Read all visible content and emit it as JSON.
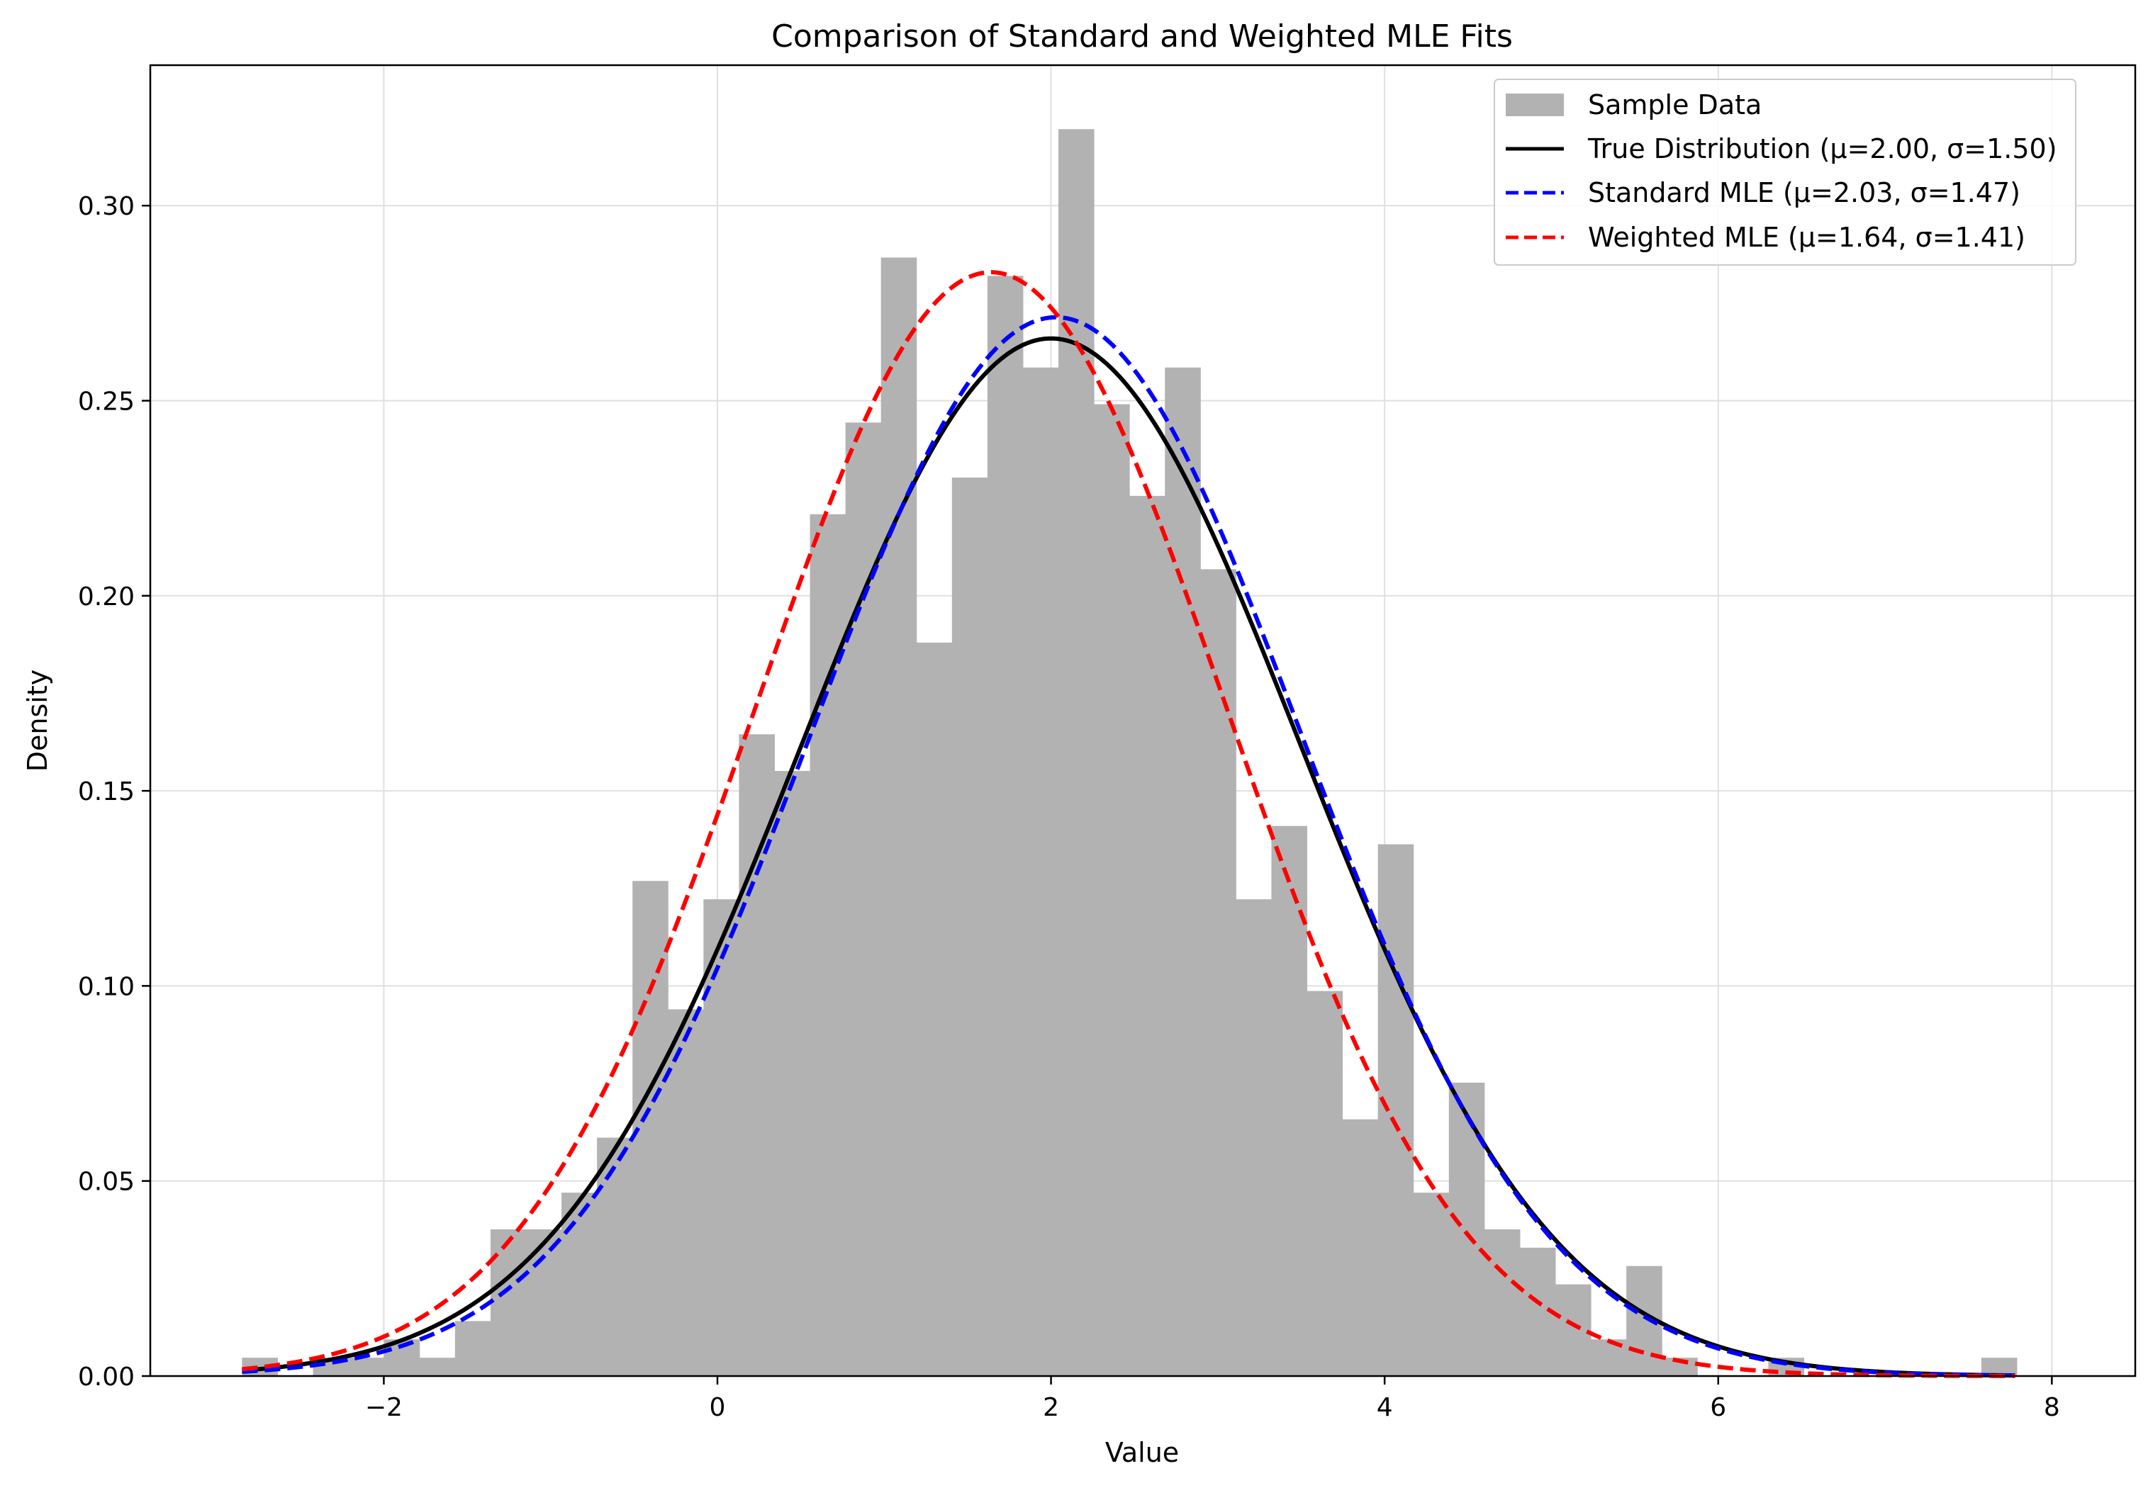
{
  "chart_data": {
    "type": "histogram_with_lines",
    "title": "Comparison of Standard and Weighted MLE Fits",
    "xlabel": "Value",
    "ylabel": "Density",
    "xlim": [
      -3.4,
      8.5
    ],
    "ylim": [
      0.0,
      0.336
    ],
    "x_ticks": [
      -2,
      0,
      2,
      4,
      6,
      8
    ],
    "x_tick_labels": [
      "−2",
      "0",
      "2",
      "4",
      "6",
      "8"
    ],
    "y_ticks": [
      0.0,
      0.05,
      0.1,
      0.15,
      0.2,
      0.25,
      0.3
    ],
    "y_tick_labels": [
      "0.00",
      "0.05",
      "0.10",
      "0.15",
      "0.20",
      "0.25",
      "0.30"
    ],
    "grid": true,
    "legend_placement": "upper right",
    "histogram": {
      "name": "Sample Data",
      "color": "#b2b2b2",
      "bin_start": -2.85,
      "bin_width": 0.2128,
      "densities": [
        0.0047,
        0.0,
        0.0047,
        0.0047,
        0.0094,
        0.0047,
        0.0141,
        0.0376,
        0.0376,
        0.047,
        0.0611,
        0.1269,
        0.094,
        0.1222,
        0.1645,
        0.1551,
        0.2209,
        0.2444,
        0.2867,
        0.188,
        0.2303,
        0.282,
        0.2585,
        0.3196,
        0.2491,
        0.2256,
        0.2585,
        0.2068,
        0.1222,
        0.141,
        0.0987,
        0.0658,
        0.1363,
        0.047,
        0.0752,
        0.0376,
        0.0329,
        0.0235,
        0.0094,
        0.0282,
        0.0047,
        0.0,
        0.0,
        0.0047,
        0.0,
        0.0,
        0.0,
        0.0,
        0.0,
        0.0047
      ]
    },
    "series": [
      {
        "name": "True Distribution (μ=2.00, σ=1.50)",
        "mu": 2.0,
        "sigma": 1.5,
        "color": "#000000",
        "style": "solid"
      },
      {
        "name": "Standard MLE (μ=2.03, σ=1.47)",
        "mu": 2.03,
        "sigma": 1.47,
        "color": "#0000ff",
        "style": "dashed"
      },
      {
        "name": "Weighted MLE (μ=1.64, σ=1.41)",
        "mu": 1.64,
        "sigma": 1.41,
        "color": "#ff0000",
        "style": "dashed"
      }
    ],
    "curve_x_range": [
      -2.85,
      7.78
    ]
  }
}
